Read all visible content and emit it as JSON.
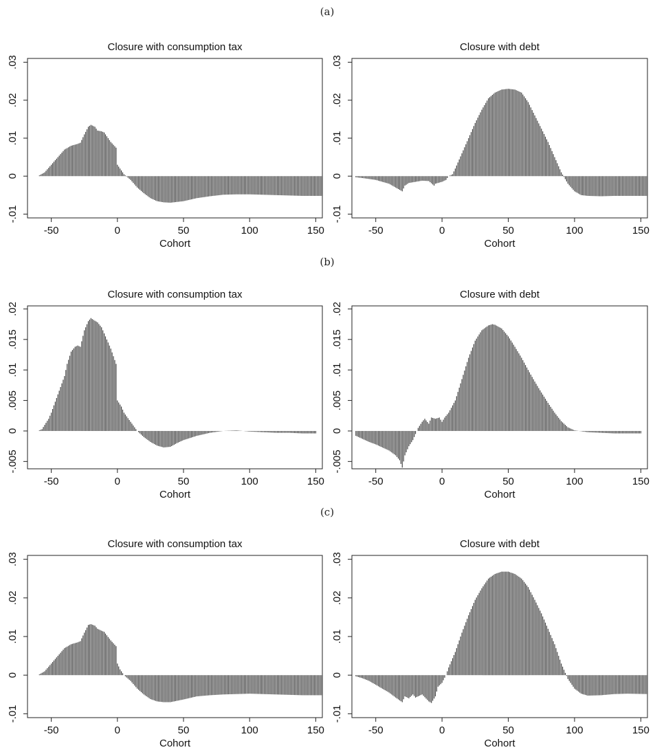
{
  "panel_labels": [
    "(a)",
    "(b)",
    "(c)"
  ],
  "chart_data": [
    {
      "panel": "(a)",
      "type": "bar",
      "title": "Closure with consumption tax",
      "xlabel": "Cohort",
      "ylabel": "",
      "xlim": [
        -68,
        155
      ],
      "ylim": [
        -0.011,
        0.031
      ],
      "xticks": [
        "-50",
        "0",
        "50",
        "100",
        "150"
      ],
      "yticks": [
        "-.01",
        "0",
        ".01",
        ".02",
        ".03"
      ],
      "bar_color": "#3a3a3a",
      "x": [
        -60,
        -55,
        -50,
        -45,
        -40,
        -35,
        -30,
        -28,
        -25,
        -22,
        -20,
        -17,
        -15,
        -12,
        -10,
        -5,
        -1,
        0,
        2,
        5,
        10,
        15,
        20,
        25,
        30,
        35,
        40,
        50,
        60,
        70,
        80,
        90,
        100,
        110,
        120,
        130,
        140,
        155
      ],
      "values": [
        0.0,
        0.001,
        0.003,
        0.005,
        0.007,
        0.008,
        0.0085,
        0.0088,
        0.011,
        0.013,
        0.0135,
        0.013,
        0.012,
        0.0118,
        0.0115,
        0.009,
        0.0075,
        0.003,
        0.002,
        0.0005,
        -0.001,
        -0.003,
        -0.0045,
        -0.0058,
        -0.0066,
        -0.0069,
        -0.007,
        -0.0066,
        -0.0058,
        -0.0053,
        -0.0049,
        -0.0048,
        -0.0048,
        -0.0049,
        -0.005,
        -0.0051,
        -0.0052,
        -0.0052
      ]
    },
    {
      "panel": "(a)",
      "type": "bar",
      "title": "Closure with debt",
      "xlabel": "Cohort",
      "ylabel": "",
      "xlim": [
        -68,
        155
      ],
      "ylim": [
        -0.011,
        0.031
      ],
      "xticks": [
        "-50",
        "0",
        "50",
        "100",
        "150"
      ],
      "yticks": [
        "-.01",
        "0",
        ".01",
        ".02",
        ".03"
      ],
      "bar_color": "#3a3a3a",
      "x": [
        -65,
        -60,
        -50,
        -45,
        -40,
        -35,
        -30,
        -28,
        -25,
        -20,
        -15,
        -10,
        -6,
        -5,
        0,
        3,
        5,
        8,
        10,
        15,
        20,
        25,
        30,
        35,
        40,
        45,
        50,
        55,
        60,
        65,
        70,
        75,
        80,
        85,
        90,
        95,
        100,
        105,
        110,
        120,
        130,
        140,
        155
      ],
      "values": [
        -0.0003,
        -0.0005,
        -0.001,
        -0.0015,
        -0.002,
        -0.003,
        -0.004,
        -0.0025,
        -0.0018,
        -0.0015,
        -0.0012,
        -0.0013,
        -0.0025,
        -0.002,
        -0.0015,
        -0.001,
        0.0,
        0.0005,
        0.002,
        0.006,
        0.01,
        0.014,
        0.0175,
        0.0205,
        0.022,
        0.0228,
        0.023,
        0.0228,
        0.022,
        0.0195,
        0.016,
        0.0125,
        0.009,
        0.005,
        0.001,
        -0.002,
        -0.004,
        -0.005,
        -0.0052,
        -0.0053,
        -0.0052,
        -0.0052,
        -0.0052
      ]
    },
    {
      "panel": "(b)",
      "type": "bar",
      "title": "Closure with consumption tax",
      "xlabel": "Cohort",
      "ylabel": "",
      "xlim": [
        -68,
        155
      ],
      "ylim": [
        -0.0062,
        0.0205
      ],
      "xticks": [
        "-50",
        "0",
        "50",
        "100",
        "150"
      ],
      "yticks": [
        "-.005",
        "0",
        ".005",
        ".01",
        ".015",
        ".02"
      ],
      "bar_color": "#3a3a3a",
      "x": [
        -60,
        -57,
        -55,
        -52,
        -50,
        -45,
        -40,
        -38,
        -35,
        -32,
        -30,
        -28,
        -25,
        -22,
        -20,
        -18,
        -15,
        -12,
        -10,
        -5,
        -1,
        0,
        3,
        5,
        10,
        15,
        20,
        25,
        30,
        35,
        40,
        45,
        50,
        60,
        70,
        80,
        90,
        100,
        110,
        120,
        130,
        140,
        150
      ],
      "values": [
        0.0,
        0.0003,
        0.001,
        0.002,
        0.003,
        0.006,
        0.009,
        0.011,
        0.013,
        0.0138,
        0.014,
        0.0138,
        0.0165,
        0.018,
        0.0185,
        0.0182,
        0.0178,
        0.017,
        0.016,
        0.0135,
        0.011,
        0.005,
        0.004,
        0.003,
        0.0015,
        0.0,
        -0.001,
        -0.0018,
        -0.0024,
        -0.0027,
        -0.0026,
        -0.002,
        -0.0015,
        -0.0008,
        -0.0003,
        0.0,
        0.0001,
        -0.0001,
        -0.0002,
        -0.0003,
        -0.0003,
        -0.0004,
        -0.0004
      ]
    },
    {
      "panel": "(b)",
      "type": "bar",
      "title": "Closure with debt",
      "xlabel": "Cohort",
      "ylabel": "",
      "xlim": [
        -68,
        155
      ],
      "ylim": [
        -0.0062,
        0.0205
      ],
      "xticks": [
        "-50",
        "0",
        "50",
        "100",
        "150"
      ],
      "yticks": [
        "-.005",
        "0",
        ".005",
        ".01",
        ".015",
        ".02"
      ],
      "bar_color": "#3a3a3a",
      "x": [
        -65,
        -60,
        -55,
        -50,
        -45,
        -40,
        -35,
        -32,
        -30,
        -28,
        -25,
        -22,
        -20,
        -18,
        -15,
        -13,
        -10,
        -8,
        -5,
        -2,
        0,
        2,
        5,
        10,
        15,
        20,
        25,
        30,
        35,
        38,
        40,
        45,
        50,
        55,
        60,
        65,
        70,
        75,
        80,
        85,
        90,
        95,
        100,
        110,
        120,
        130,
        140,
        150
      ],
      "values": [
        -0.0008,
        -0.0013,
        -0.0018,
        -0.0022,
        -0.0027,
        -0.0032,
        -0.004,
        -0.0048,
        -0.006,
        -0.004,
        -0.0025,
        -0.0015,
        -0.0005,
        0.0005,
        0.0015,
        0.002,
        0.0012,
        0.0022,
        0.002,
        0.0022,
        0.0015,
        0.0022,
        0.003,
        0.005,
        0.0085,
        0.012,
        0.0148,
        0.0165,
        0.0173,
        0.0175,
        0.0174,
        0.0168,
        0.0155,
        0.0138,
        0.012,
        0.01,
        0.0081,
        0.0063,
        0.0046,
        0.003,
        0.0016,
        0.0006,
        0.0001,
        -0.0002,
        -0.0003,
        -0.0004,
        -0.0004,
        -0.0004
      ]
    },
    {
      "panel": "(c)",
      "type": "bar",
      "title": "Closure with consumption tax",
      "xlabel": "Cohort",
      "ylabel": "",
      "xlim": [
        -68,
        155
      ],
      "ylim": [
        -0.011,
        0.031
      ],
      "xticks": [
        "-50",
        "0",
        "50",
        "100",
        "150"
      ],
      "yticks": [
        "-.01",
        "0",
        ".01",
        ".02",
        ".03"
      ],
      "bar_color": "#3a3a3a",
      "x": [
        -60,
        -55,
        -50,
        -45,
        -40,
        -35,
        -30,
        -28,
        -25,
        -22,
        -20,
        -17,
        -15,
        -12,
        -10,
        -5,
        -1,
        0,
        2,
        5,
        10,
        15,
        20,
        25,
        30,
        35,
        40,
        50,
        60,
        70,
        80,
        90,
        100,
        110,
        120,
        130,
        140,
        155
      ],
      "values": [
        0.0,
        0.001,
        0.003,
        0.005,
        0.007,
        0.008,
        0.0085,
        0.0088,
        0.011,
        0.013,
        0.0132,
        0.0128,
        0.012,
        0.0115,
        0.0112,
        0.009,
        0.0075,
        0.003,
        0.0015,
        0.0,
        -0.0015,
        -0.0035,
        -0.005,
        -0.0062,
        -0.0068,
        -0.007,
        -0.007,
        -0.0063,
        -0.0055,
        -0.0052,
        -0.005,
        -0.0049,
        -0.0048,
        -0.0049,
        -0.005,
        -0.0051,
        -0.0052,
        -0.0052
      ]
    },
    {
      "panel": "(c)",
      "type": "bar",
      "title": "Closure with debt",
      "xlabel": "Cohort",
      "ylabel": "",
      "xlim": [
        -68,
        155
      ],
      "ylim": [
        -0.011,
        0.031
      ],
      "xticks": [
        "-50",
        "0",
        "50",
        "100",
        "150"
      ],
      "yticks": [
        "-.01",
        "0",
        ".01",
        ".02",
        ".03"
      ],
      "bar_color": "#3a3a3a",
      "x": [
        -65,
        -60,
        -55,
        -50,
        -45,
        -40,
        -35,
        -30,
        -28,
        -25,
        -22,
        -20,
        -15,
        -10,
        -8,
        -5,
        -3,
        0,
        3,
        5,
        10,
        15,
        20,
        25,
        30,
        35,
        40,
        45,
        50,
        55,
        60,
        65,
        70,
        75,
        80,
        85,
        90,
        95,
        100,
        105,
        110,
        120,
        130,
        140,
        155
      ],
      "values": [
        -0.0003,
        -0.0008,
        -0.0015,
        -0.0025,
        -0.0035,
        -0.0045,
        -0.0058,
        -0.007,
        -0.0055,
        -0.006,
        -0.005,
        -0.0058,
        -0.005,
        -0.0068,
        -0.0072,
        -0.0055,
        -0.003,
        -0.002,
        0.0,
        0.002,
        0.006,
        0.011,
        0.0155,
        0.0195,
        0.0225,
        0.025,
        0.0262,
        0.0268,
        0.0268,
        0.0262,
        0.025,
        0.0228,
        0.0195,
        0.016,
        0.012,
        0.008,
        0.003,
        -0.001,
        -0.0035,
        -0.0048,
        -0.0053,
        -0.0052,
        -0.0049,
        -0.0048,
        -0.0049
      ]
    }
  ]
}
